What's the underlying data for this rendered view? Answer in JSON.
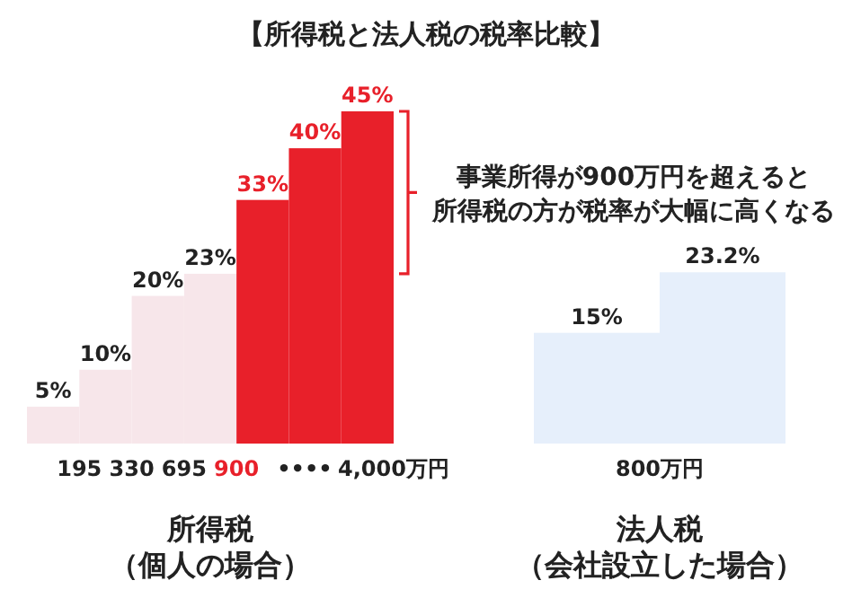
{
  "chart_data": [
    {
      "type": "bar",
      "title": "【所得税と法人税の税率比較】",
      "xlabel": "所得税（個人の場合）",
      "categories": [
        null,
        null,
        null,
        null,
        null,
        null,
        null
      ],
      "values": [
        5,
        10,
        20,
        23,
        33,
        40,
        45
      ],
      "value_labels": [
        "5%",
        "10%",
        "20%",
        "23%",
        "33%",
        "40%",
        "45%"
      ],
      "colors": [
        "#f7e6ea",
        "#f7e6ea",
        "#f7e6ea",
        "#f7e6ea",
        "#e8202a",
        "#e8202a",
        "#e8202a"
      ],
      "annotations": [
        "事業所得が900万円を超えると所得税の方が税率が大幅に高くなる",
        "195",
        "330",
        "695",
        "900",
        "••••",
        "4,000万円"
      ]
    },
    {
      "type": "bar",
      "xlabel": "法人税（会社設立した場合）",
      "categories": [
        null,
        null
      ],
      "values": [
        15,
        23.2
      ],
      "value_labels": [
        "15%",
        "23.2%"
      ],
      "colors": [
        "#e6effb",
        "#e6effb"
      ],
      "annotations": [
        "800万円"
      ]
    }
  ]
}
